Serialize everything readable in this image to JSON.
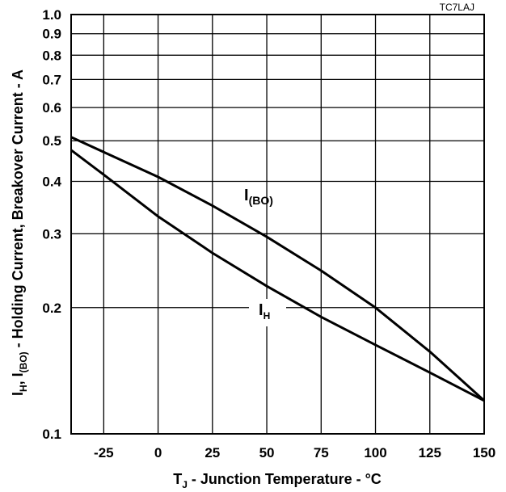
{
  "chart_data": {
    "type": "line",
    "figure_ref": "TC7LAJ",
    "xlabel": {
      "main": "T",
      "sub": "J",
      "rest": " - Junction Temperature - °C"
    },
    "ylabel": {
      "p1": "I",
      "s1": "H",
      "p2": ", I",
      "s2": "(BO)",
      "p3": " - Holding Current, Breakover Current - A"
    },
    "xlim": [
      -40,
      150
    ],
    "ylim": [
      0.1,
      1.0
    ],
    "yscale": "log",
    "grid": true,
    "x_ticks": [
      -25,
      0,
      25,
      50,
      75,
      100,
      125,
      150
    ],
    "x_tick_labels": [
      "-25",
      "0",
      "25",
      "50",
      "75",
      "100",
      "125",
      "150"
    ],
    "y_ticks": [
      0.1,
      0.2,
      0.3,
      0.4,
      0.5,
      0.6,
      0.7,
      0.8,
      0.9,
      1.0
    ],
    "y_tick_labels": [
      "0.1",
      "0.2",
      "0.3",
      "0.4",
      "0.5",
      "0.6",
      "0.7",
      "0.8",
      "0.9",
      "1.0"
    ],
    "series": [
      {
        "name": "I(BO)",
        "label_main": "I",
        "label_sub": "(BO)",
        "x": [
          -40,
          -25,
          0,
          25,
          50,
          75,
          100,
          125,
          150
        ],
        "y": [
          0.51,
          0.47,
          0.41,
          0.35,
          0.295,
          0.245,
          0.2,
          0.157,
          0.12
        ]
      },
      {
        "name": "IH",
        "label_main": "I",
        "label_sub": "H",
        "x": [
          -40,
          -25,
          0,
          25,
          50,
          75,
          100,
          125,
          150
        ],
        "y": [
          0.475,
          0.415,
          0.33,
          0.27,
          0.225,
          0.19,
          0.163,
          0.14,
          0.12
        ]
      }
    ]
  }
}
